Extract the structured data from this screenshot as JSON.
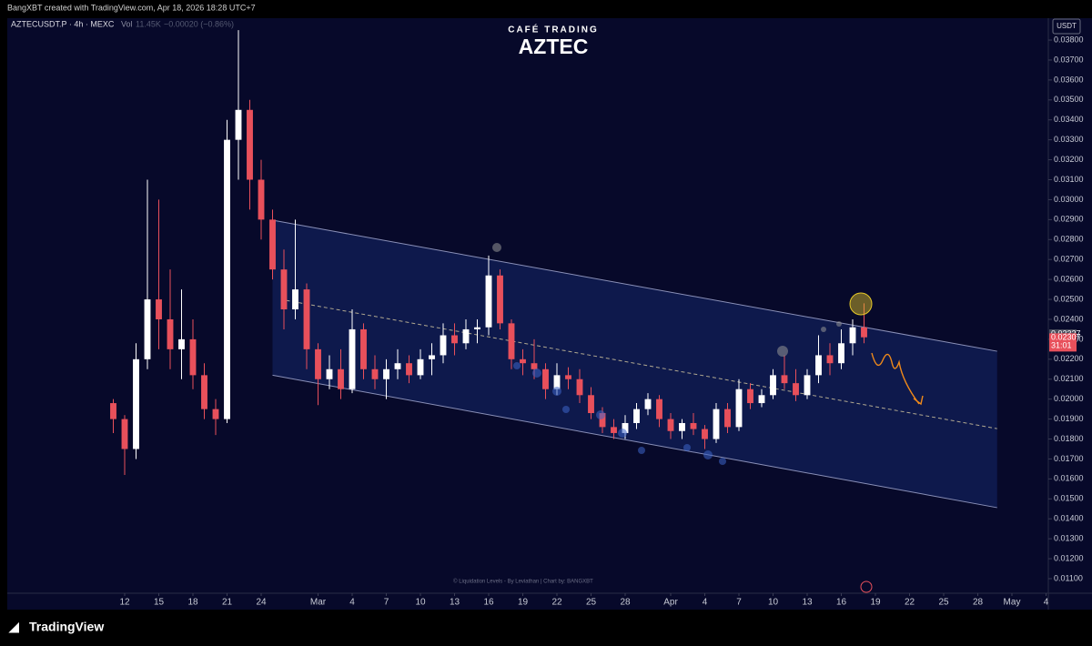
{
  "header": {
    "attribution": "BangXBT created with TradingView.com, Apr 18, 2026 18:28 UTC+7"
  },
  "chart_data": {
    "type": "candlestick",
    "subtitle": "CAFÉ TRADING",
    "title": "AZTEC",
    "symbol": "AZTECUSDT.P · 4h · MEXC",
    "volume_label": "Vol",
    "volume": "11.45K",
    "change": "−0.00020 (−0.86%)",
    "currency": "USDT",
    "watermark": "© Liquidation Levels - By Leviathan | Chart by: BANGXBT",
    "bull_color": "#ffffff",
    "bear_color": "#e8505b",
    "x": [
      -1,
      0,
      1,
      2,
      3,
      4,
      5,
      6,
      7,
      8,
      9,
      10,
      11,
      12,
      13,
      14,
      15,
      16,
      17,
      18,
      19,
      20,
      21,
      22,
      23,
      24,
      25,
      26,
      27,
      28,
      29,
      30,
      31,
      32,
      33,
      34,
      35,
      36,
      37,
      38,
      39,
      40,
      41,
      42,
      43,
      44,
      45,
      46,
      47,
      48,
      49,
      50,
      51,
      52,
      53,
      54,
      55,
      56,
      57,
      58,
      59,
      60,
      61,
      62,
      63,
      64,
      65
    ],
    "open": [
      0.0198,
      0.019,
      0.0175,
      0.022,
      0.025,
      0.024,
      0.0225,
      0.023,
      0.0212,
      0.0195,
      0.019,
      0.033,
      0.0345,
      0.031,
      0.029,
      0.0265,
      0.0245,
      0.0255,
      0.0225,
      0.021,
      0.0215,
      0.0205,
      0.0235,
      0.0215,
      0.021,
      0.0215,
      0.0218,
      0.0212,
      0.022,
      0.0222,
      0.0232,
      0.0228,
      0.0235,
      0.0236,
      0.0262,
      0.0238,
      0.022,
      0.0218,
      0.0215,
      0.0205,
      0.0212,
      0.021,
      0.0202,
      0.0193,
      0.0186,
      0.0183,
      0.0188,
      0.0195,
      0.02,
      0.019,
      0.0184,
      0.0188,
      0.0185,
      0.018,
      0.0195,
      0.0186,
      0.0205,
      0.0198,
      0.0202,
      0.0212,
      0.0208,
      0.0202,
      0.0212,
      0.0222,
      0.0218,
      0.0228,
      0.0236
    ],
    "high": [
      0.02,
      0.0192,
      0.0228,
      0.031,
      0.03,
      0.0265,
      0.0255,
      0.024,
      0.0218,
      0.02,
      0.034,
      0.0385,
      0.035,
      0.032,
      0.0295,
      0.0275,
      0.029,
      0.0258,
      0.0228,
      0.0222,
      0.0225,
      0.0245,
      0.0238,
      0.0222,
      0.022,
      0.0225,
      0.0222,
      0.0225,
      0.0228,
      0.0238,
      0.0238,
      0.024,
      0.024,
      0.0272,
      0.0265,
      0.024,
      0.0225,
      0.023,
      0.0218,
      0.0218,
      0.0216,
      0.0215,
      0.0206,
      0.0196,
      0.019,
      0.0192,
      0.0198,
      0.0203,
      0.0202,
      0.0193,
      0.019,
      0.0193,
      0.0187,
      0.0198,
      0.0198,
      0.021,
      0.0208,
      0.0205,
      0.0215,
      0.0222,
      0.0215,
      0.0215,
      0.0232,
      0.0228,
      0.0235,
      0.024,
      0.0248
    ],
    "low": [
      0.0183,
      0.0162,
      0.017,
      0.0215,
      0.0225,
      0.0215,
      0.021,
      0.0205,
      0.019,
      0.0182,
      0.0188,
      0.031,
      0.0295,
      0.028,
      0.026,
      0.0235,
      0.024,
      0.0215,
      0.0197,
      0.0205,
      0.02,
      0.0203,
      0.021,
      0.0205,
      0.02,
      0.021,
      0.0208,
      0.021,
      0.0212,
      0.0218,
      0.0222,
      0.0225,
      0.0228,
      0.0232,
      0.0235,
      0.0215,
      0.0212,
      0.021,
      0.02,
      0.0202,
      0.0205,
      0.0198,
      0.019,
      0.0183,
      0.018,
      0.018,
      0.0185,
      0.0192,
      0.0186,
      0.018,
      0.018,
      0.0182,
      0.0175,
      0.0178,
      0.0183,
      0.0184,
      0.0195,
      0.0196,
      0.02,
      0.0205,
      0.0199,
      0.02,
      0.0208,
      0.0212,
      0.0215,
      0.0222,
      0.0228
    ],
    "close": [
      0.019,
      0.0175,
      0.022,
      0.025,
      0.024,
      0.0225,
      0.023,
      0.0212,
      0.0195,
      0.019,
      0.033,
      0.0345,
      0.031,
      0.029,
      0.0265,
      0.0245,
      0.0255,
      0.0225,
      0.021,
      0.0215,
      0.0205,
      0.0235,
      0.0215,
      0.021,
      0.0215,
      0.0218,
      0.0212,
      0.022,
      0.0222,
      0.0232,
      0.0228,
      0.0235,
      0.0236,
      0.0262,
      0.0238,
      0.022,
      0.0218,
      0.0215,
      0.0205,
      0.0212,
      0.021,
      0.0202,
      0.0193,
      0.0186,
      0.0183,
      0.0188,
      0.0195,
      0.02,
      0.019,
      0.0184,
      0.0188,
      0.0185,
      0.018,
      0.0195,
      0.0186,
      0.0205,
      0.0198,
      0.0202,
      0.0212,
      0.0208,
      0.0202,
      0.0212,
      0.0222,
      0.0218,
      0.0228,
      0.0236,
      0.0231
    ],
    "channel": {
      "upper": {
        "x": [
          13,
          76.7
        ],
        "y": [
          0.02897,
          0.0224
        ]
      },
      "middle": {
        "x": [
          14.2,
          76.7
        ],
        "y": [
          0.02495,
          0.01852
        ]
      },
      "lower": {
        "x": [
          13,
          76.7
        ],
        "y": [
          0.0212,
          0.01456
        ]
      }
    },
    "price_labels": [
      {
        "value": 0.02327,
        "color": "#4a4d5c"
      },
      {
        "value": 0.02307,
        "color": "#e8505b",
        "countdown": "31:01"
      }
    ],
    "xlim": [
      -10.32,
      81.2
    ],
    "xticks": [
      {
        "value": 0,
        "label": "12"
      },
      {
        "value": 3,
        "label": "15"
      },
      {
        "value": 6,
        "label": "18"
      },
      {
        "value": 9,
        "label": "21"
      },
      {
        "value": 12,
        "label": "24"
      },
      {
        "value": 17,
        "label": "Mar"
      },
      {
        "value": 20,
        "label": "4"
      },
      {
        "value": 23,
        "label": "7"
      },
      {
        "value": 26,
        "label": "10"
      },
      {
        "value": 29,
        "label": "13"
      },
      {
        "value": 32,
        "label": "16"
      },
      {
        "value": 35,
        "label": "19"
      },
      {
        "value": 38,
        "label": "22"
      },
      {
        "value": 41,
        "label": "25"
      },
      {
        "value": 44,
        "label": "28"
      },
      {
        "value": 48,
        "label": "Apr"
      },
      {
        "value": 51,
        "label": "4"
      },
      {
        "value": 54,
        "label": "7"
      },
      {
        "value": 57,
        "label": "10"
      },
      {
        "value": 60,
        "label": "13"
      },
      {
        "value": 63,
        "label": "16"
      },
      {
        "value": 66,
        "label": "19"
      },
      {
        "value": 69,
        "label": "22"
      },
      {
        "value": 72,
        "label": "25"
      },
      {
        "value": 75,
        "label": "28"
      },
      {
        "value": 78,
        "label": "May"
      },
      {
        "value": 81,
        "label": "4"
      }
    ],
    "ylim": [
      0.01027,
      0.03864
    ],
    "yticks": [
      {
        "value": 0.011,
        "label": "0.01100"
      },
      {
        "value": 0.012,
        "label": "0.01200"
      },
      {
        "value": 0.013,
        "label": "0.01300"
      },
      {
        "value": 0.014,
        "label": "0.01400"
      },
      {
        "value": 0.015,
        "label": "0.01500"
      },
      {
        "value": 0.016,
        "label": "0.01600"
      },
      {
        "value": 0.017,
        "label": "0.01700"
      },
      {
        "value": 0.018,
        "label": "0.01800"
      },
      {
        "value": 0.019,
        "label": "0.01900"
      },
      {
        "value": 0.02,
        "label": "0.02000"
      },
      {
        "value": 0.021,
        "label": "0.02100"
      },
      {
        "value": 0.022,
        "label": "0.02200"
      },
      {
        "value": 0.023,
        "label": "0.02300"
      },
      {
        "value": 0.024,
        "label": "0.02400"
      },
      {
        "value": 0.025,
        "label": "0.02500"
      },
      {
        "value": 0.026,
        "label": "0.02600"
      },
      {
        "value": 0.027,
        "label": "0.02700"
      },
      {
        "value": 0.028,
        "label": "0.02800"
      },
      {
        "value": 0.029,
        "label": "0.02900"
      },
      {
        "value": 0.03,
        "label": "0.03000"
      },
      {
        "value": 0.031,
        "label": "0.03100"
      },
      {
        "value": 0.032,
        "label": "0.03200"
      },
      {
        "value": 0.033,
        "label": "0.03300"
      },
      {
        "value": 0.034,
        "label": "0.03400"
      },
      {
        "value": 0.035,
        "label": "0.03500"
      },
      {
        "value": 0.036,
        "label": "0.03600"
      },
      {
        "value": 0.037,
        "label": "0.03700"
      },
      {
        "value": 0.038,
        "label": "0.03800"
      }
    ]
  },
  "footer": {
    "brand": "TradingView"
  }
}
